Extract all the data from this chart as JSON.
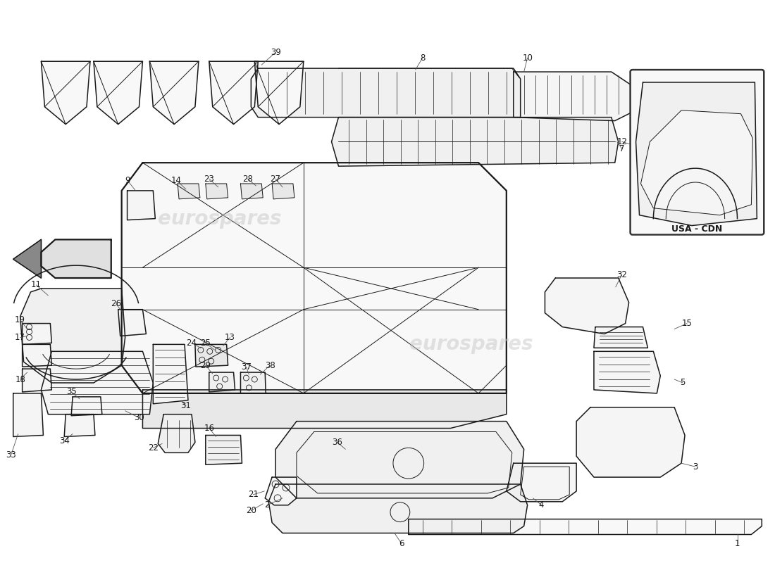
{
  "background_color": "#ffffff",
  "line_color": "#1a1a1a",
  "watermark_color": "#c8c8c8",
  "watermark_text": "eurospares",
  "usa_cdn_label": "USA - CDN",
  "label_fontsize": 8.5,
  "lw_main": 1.1,
  "lw_thin": 0.7,
  "lw_thick": 1.6
}
